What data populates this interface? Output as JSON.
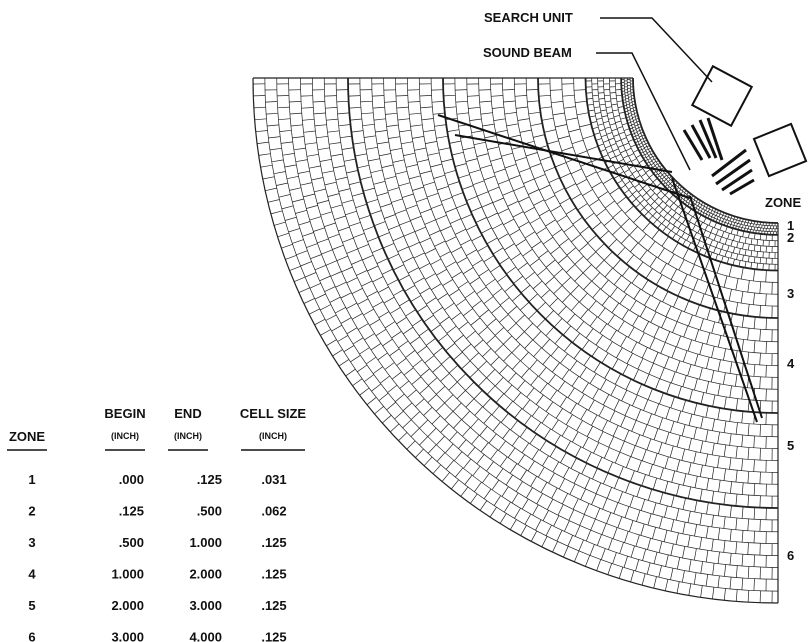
{
  "labels": {
    "search_unit": "SEARCH UNIT",
    "sound_beam": "SOUND BEAM",
    "zone": "ZONE"
  },
  "zone_markers": [
    "1",
    "2",
    "3",
    "4",
    "5",
    "6"
  ],
  "table": {
    "headers": [
      {
        "main": "ZONE"
      },
      {
        "main": "BEGIN",
        "unit": "(INCH)"
      },
      {
        "main": "END",
        "unit": "(INCH)"
      },
      {
        "main": "CELL SIZE",
        "unit": "(INCH)"
      }
    ],
    "rows": [
      [
        "1",
        ".000",
        ".125",
        ".031"
      ],
      [
        "2",
        ".125",
        ".500",
        ".062"
      ],
      [
        "3",
        ".500",
        "1.000",
        ".125"
      ],
      [
        "4",
        "1.000",
        "2.000",
        ".125"
      ],
      [
        "5",
        "2.000",
        "3.000",
        ".125"
      ],
      [
        "6",
        "3.000",
        "4.000",
        ".125"
      ]
    ]
  }
}
